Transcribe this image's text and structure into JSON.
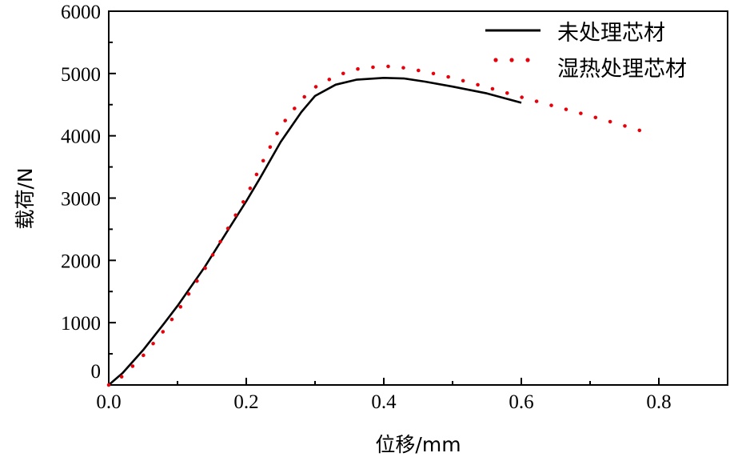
{
  "chart_data": {
    "type": "line",
    "xlabel": "位移/mm",
    "ylabel": "载荷/N",
    "xlim": [
      0,
      0.9
    ],
    "ylim": [
      0,
      6000
    ],
    "x_ticks": [
      "0.0",
      "0.2",
      "0.4",
      "0.6",
      "0.8"
    ],
    "x_tick_values": [
      0,
      0.2,
      0.4,
      0.6,
      0.8
    ],
    "y_ticks": [
      "0",
      "1000",
      "2000",
      "3000",
      "4000",
      "5000",
      "6000"
    ],
    "y_tick_values": [
      0,
      1000,
      2000,
      3000,
      4000,
      5000,
      6000
    ],
    "legend_position": "top-right",
    "grid": false,
    "series": [
      {
        "name": "未处理芯材",
        "style": "solid",
        "color": "#000000",
        "points": [
          [
            0.0,
            0
          ],
          [
            0.02,
            190
          ],
          [
            0.05,
            560
          ],
          [
            0.08,
            980
          ],
          [
            0.1,
            1270
          ],
          [
            0.14,
            1900
          ],
          [
            0.18,
            2600
          ],
          [
            0.2,
            2950
          ],
          [
            0.22,
            3320
          ],
          [
            0.25,
            3900
          ],
          [
            0.28,
            4380
          ],
          [
            0.3,
            4640
          ],
          [
            0.33,
            4820
          ],
          [
            0.36,
            4900
          ],
          [
            0.4,
            4930
          ],
          [
            0.43,
            4920
          ],
          [
            0.46,
            4870
          ],
          [
            0.5,
            4790
          ],
          [
            0.55,
            4680
          ],
          [
            0.6,
            4530
          ]
        ]
      },
      {
        "name": "湿热处理芯材",
        "style": "dotted",
        "color": "#e8000b",
        "points": [
          [
            0.0,
            0
          ],
          [
            0.02,
            140
          ],
          [
            0.05,
            470
          ],
          [
            0.08,
            870
          ],
          [
            0.1,
            1180
          ],
          [
            0.14,
            1870
          ],
          [
            0.17,
            2450
          ],
          [
            0.2,
            3020
          ],
          [
            0.22,
            3500
          ],
          [
            0.25,
            4150
          ],
          [
            0.28,
            4580
          ],
          [
            0.3,
            4780
          ],
          [
            0.33,
            4960
          ],
          [
            0.36,
            5070
          ],
          [
            0.4,
            5120
          ],
          [
            0.43,
            5090
          ],
          [
            0.46,
            5030
          ],
          [
            0.5,
            4930
          ],
          [
            0.55,
            4780
          ],
          [
            0.6,
            4620
          ],
          [
            0.65,
            4470
          ],
          [
            0.7,
            4320
          ],
          [
            0.75,
            4160
          ],
          [
            0.78,
            4060
          ]
        ]
      }
    ]
  }
}
